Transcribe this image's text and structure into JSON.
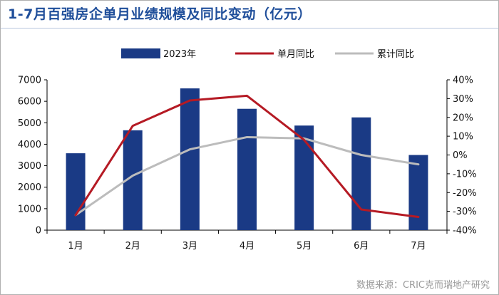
{
  "title": "1-7月百强房企单月业绩规模及同比变动（亿元）",
  "source": "数据来源：CRIC克而瑞地产研究",
  "colors": {
    "bar": "#1a3a85",
    "monthly_line": "#b51a24",
    "cumulative_line": "#bcbcbc"
  },
  "chart_data": {
    "type": "bar",
    "categories": [
      "1月",
      "2月",
      "3月",
      "4月",
      "5月",
      "6月",
      "7月"
    ],
    "series": [
      {
        "name": "2023年",
        "type": "bar",
        "axis": "left",
        "values": [
          3580,
          4650,
          6600,
          5650,
          4870,
          5250,
          3500
        ]
      },
      {
        "name": "单月同比",
        "type": "line",
        "axis": "right",
        "values": [
          -32,
          15.5,
          29,
          31.5,
          8,
          -29,
          -33
        ]
      },
      {
        "name": "累计同比",
        "type": "line",
        "axis": "right",
        "values": [
          -32,
          -11,
          3,
          9.5,
          8.8,
          0,
          -5
        ]
      }
    ],
    "y_left": {
      "min": 0,
      "max": 7000,
      "step": 1000,
      "ticks": [
        "0",
        "1000",
        "2000",
        "3000",
        "4000",
        "5000",
        "6000",
        "7000"
      ]
    },
    "y_right": {
      "min": -40,
      "max": 40,
      "step": 10,
      "ticks": [
        "-40%",
        "-30%",
        "-20%",
        "-10%",
        "0%",
        "10%",
        "20%",
        "30%",
        "40%"
      ]
    },
    "legend_position": "top",
    "grid": false
  }
}
